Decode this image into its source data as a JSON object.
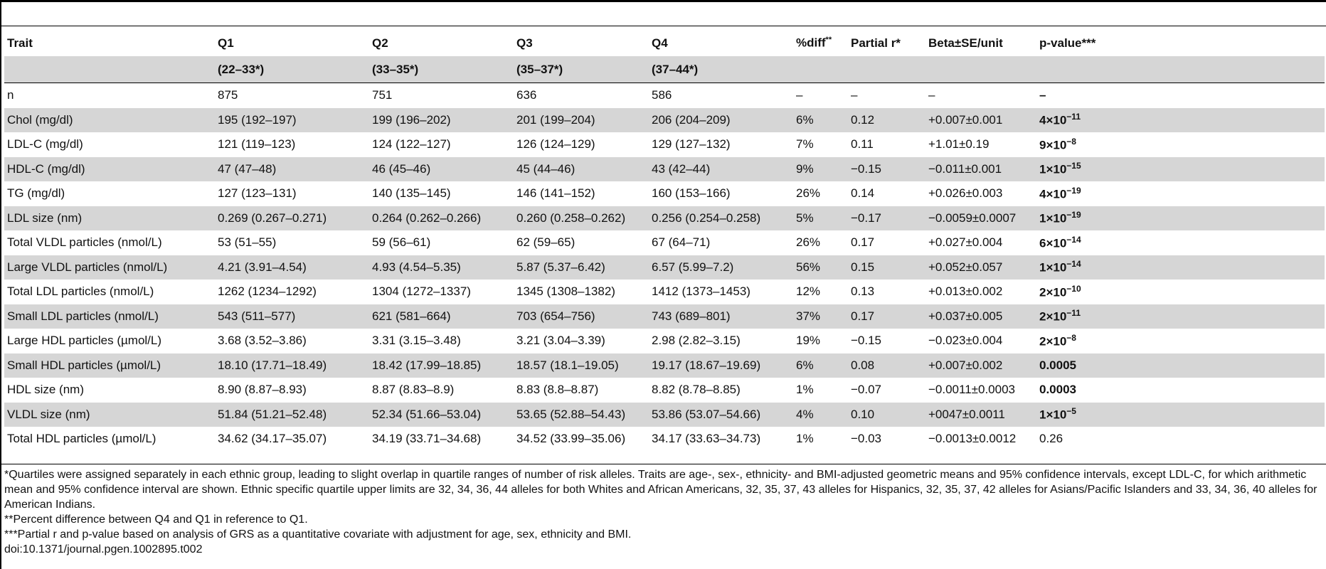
{
  "table": {
    "headers": [
      "Trait",
      "Q1",
      "Q2",
      "Q3",
      "Q4",
      "%diff",
      "Partial r*",
      "Beta±SE/unit",
      "p-value***"
    ],
    "pct_header_sup": "**",
    "ranges": [
      "(22–33*)",
      "(33–35*)",
      "(35–37*)",
      "(37–44*)"
    ],
    "rows": [
      {
        "trait": "n",
        "q1": "875",
        "q2": "751",
        "q3": "636",
        "q4": "586",
        "pct": "–",
        "r": "–",
        "beta": "–",
        "p_base": "–",
        "p_exp": ""
      },
      {
        "trait": "Chol (mg/dl)",
        "q1": "195 (192–197)",
        "q2": "199 (196–202)",
        "q3": "201 (199–204)",
        "q4": "206 (204–209)",
        "pct": "6%",
        "r": "0.12",
        "beta": "+0.007±0.001",
        "p_base": "4×10",
        "p_exp": "−11"
      },
      {
        "trait": "LDL-C (mg/dl)",
        "q1": "121 (119–123)",
        "q2": "124 (122–127)",
        "q3": "126 (124–129)",
        "q4": "129 (127–132)",
        "pct": "7%",
        "r": "0.11",
        "beta": "+1.01±0.19",
        "p_base": "9×10",
        "p_exp": "−8"
      },
      {
        "trait": "HDL-C (mg/dl)",
        "q1": "47 (47–48)",
        "q2": "46 (45–46)",
        "q3": "45 (44–46)",
        "q4": "43 (42–44)",
        "pct": "9%",
        "r": "−0.15",
        "beta": "−0.011±0.001",
        "p_base": "1×10",
        "p_exp": "−15"
      },
      {
        "trait": "TG (mg/dl)",
        "q1": "127 (123–131)",
        "q2": "140 (135–145)",
        "q3": "146 (141–152)",
        "q4": "160 (153–166)",
        "pct": "26%",
        "r": "0.14",
        "beta": "+0.026±0.003",
        "p_base": "4×10",
        "p_exp": "−19"
      },
      {
        "trait": "LDL size (nm)",
        "q1": "0.269 (0.267–0.271)",
        "q2": "0.264 (0.262–0.266)",
        "q3": "0.260 (0.258–0.262)",
        "q4": "0.256 (0.254–0.258)",
        "pct": "5%",
        "r": "−0.17",
        "beta": "−0.0059±0.0007",
        "p_base": "1×10",
        "p_exp": "−19"
      },
      {
        "trait": "Total VLDL particles (nmol/L)",
        "q1": "53 (51–55)",
        "q2": "59 (56–61)",
        "q3": "62 (59–65)",
        "q4": "67 (64–71)",
        "pct": "26%",
        "r": "0.17",
        "beta": "+0.027±0.004",
        "p_base": "6×10",
        "p_exp": "−14"
      },
      {
        "trait": "Large VLDL particles (nmol/L)",
        "q1": "4.21 (3.91–4.54)",
        "q2": "4.93 (4.54–5.35)",
        "q3": "5.87 (5.37–6.42)",
        "q4": "6.57 (5.99–7.2)",
        "pct": "56%",
        "r": "0.15",
        "beta": "+0.052±0.057",
        "p_base": "1×10",
        "p_exp": "−14"
      },
      {
        "trait": "Total LDL particles (nmol/L)",
        "q1": "1262 (1234–1292)",
        "q2": "1304 (1272–1337)",
        "q3": "1345 (1308–1382)",
        "q4": "1412 (1373–1453)",
        "pct": "12%",
        "r": "0.13",
        "beta": "+0.013±0.002",
        "p_base": "2×10",
        "p_exp": "−10"
      },
      {
        "trait": "Small LDL particles (nmol/L)",
        "q1": "543 (511–577)",
        "q2": "621 (581–664)",
        "q3": "703 (654–756)",
        "q4": "743 (689–801)",
        "pct": "37%",
        "r": "0.17",
        "beta": "+0.037±0.005",
        "p_base": "2×10",
        "p_exp": "−11"
      },
      {
        "trait": "Large HDL particles (µmol/L)",
        "q1": "3.68 (3.52–3.86)",
        "q2": "3.31 (3.15–3.48)",
        "q3": "3.21 (3.04–3.39)",
        "q4": "2.98 (2.82–3.15)",
        "pct": "19%",
        "r": "−0.15",
        "beta": "−0.023±0.004",
        "p_base": "2×10",
        "p_exp": "−8"
      },
      {
        "trait": "Small HDL particles (µmol/L)",
        "q1": "18.10 (17.71–18.49)",
        "q2": "18.42 (17.99–18.85)",
        "q3": "18.57 (18.1–19.05)",
        "q4": "19.17 (18.67–19.69)",
        "pct": "6%",
        "r": "0.08",
        "beta": "+0.007±0.002",
        "p_base": "0.0005",
        "p_exp": ""
      },
      {
        "trait": "HDL size (nm)",
        "q1": "8.90 (8.87–8.93)",
        "q2": "8.87 (8.83–8.9)",
        "q3": "8.83 (8.8–8.87)",
        "q4": "8.82 (8.78–8.85)",
        "pct": "1%",
        "r": "−0.07",
        "beta": "−0.0011±0.0003",
        "p_base": "0.0003",
        "p_exp": ""
      },
      {
        "trait": "VLDL size (nm)",
        "q1": "51.84 (51.21–52.48)",
        "q2": "52.34 (51.66–53.04)",
        "q3": "53.65 (52.88–54.43)",
        "q4": "53.86 (53.07–54.66)",
        "pct": "4%",
        "r": "0.10",
        "beta": "+0047±0.0011",
        "p_base": "1×10",
        "p_exp": "−5"
      },
      {
        "trait": "Total HDL particles (µmol/L)",
        "q1": "34.62 (34.17–35.07)",
        "q2": "34.19 (33.71–34.68)",
        "q3": "34.52 (33.99–35.06)",
        "q4": "34.17 (33.63–34.73)",
        "pct": "1%",
        "r": "−0.03",
        "beta": "−0.0013±0.0012",
        "p_base": "0.26",
        "p_exp": "",
        "p_bold": false
      }
    ]
  },
  "footnotes": [
    "*Quartiles were assigned separately in each ethnic group, leading to slight overlap in quartile ranges of number of risk alleles. Traits are age-, sex-, ethnicity- and BMI-adjusted geometric means and 95% confidence intervals, except LDL-C, for which arithmetic mean and 95% confidence interval are shown. Ethnic specific quartile upper limits are 32, 34, 36, 44 alleles for both Whites and African Americans, 32, 35, 37, 43 alleles for Hispanics, 32, 35, 37, 42 alleles for Asians/Pacific Islanders and 33, 34, 36, 40 alleles for American Indians.",
    "**Percent difference between Q4 and Q1 in reference to Q1.",
    "***Partial r and p-value based on analysis of GRS as a quantitative covariate with adjustment for age, sex, ethnicity and BMI.",
    "doi:10.1371/journal.pgen.1002895.t002"
  ]
}
